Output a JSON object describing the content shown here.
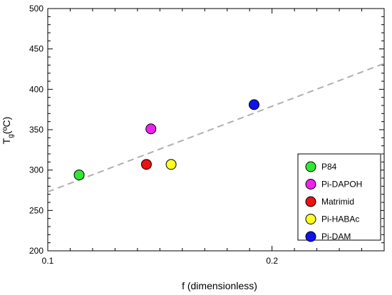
{
  "chart_data": {
    "type": "scatter",
    "xlabel": "f (dimensionless)",
    "ylabel_main": "T",
    "ylabel_sub": "g",
    "ylabel_unit": "(ºC)",
    "xlim": [
      0.1,
      0.25
    ],
    "ylim": [
      200,
      500
    ],
    "x_major_ticks": [
      0.1,
      0.2
    ],
    "x_minor_step": 0.01,
    "y_major_ticks": [
      200,
      250,
      300,
      350,
      400,
      450,
      500
    ],
    "y_minor_step": 10,
    "grid": false,
    "legend_position": "bottom-right",
    "trendline": {
      "style": "dashed",
      "color": "#b0b0b0",
      "x": [
        0.1,
        0.25
      ],
      "y": [
        273,
        432
      ]
    },
    "series": [
      {
        "name": "P84",
        "x": 0.114,
        "y": 294,
        "color": "#33e633"
      },
      {
        "name": "Pi-DAPOH",
        "x": 0.146,
        "y": 351,
        "color": "#ee22ee"
      },
      {
        "name": "Matrimid",
        "x": 0.144,
        "y": 307,
        "color": "#ee1111"
      },
      {
        "name": "Pi-HABAc",
        "x": 0.155,
        "y": 307,
        "color": "#ffff22"
      },
      {
        "name": "Pi-DAM",
        "x": 0.192,
        "y": 381,
        "color": "#1111ee"
      }
    ]
  }
}
